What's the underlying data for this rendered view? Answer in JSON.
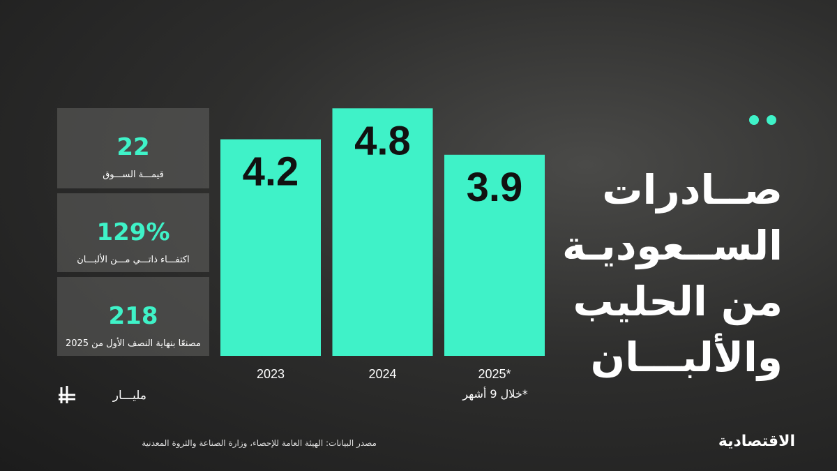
{
  "chart_data": {
    "type": "bar",
    "title_lines": [
      "صــادرات",
      "الســعوديـة",
      "من الحليب",
      "والألبـــان"
    ],
    "categories": [
      "2023",
      "2024",
      "2025*"
    ],
    "values": [
      4.2,
      4.8,
      3.9
    ],
    "color": "#3ff2c8",
    "note": "*خلال 9 أشهر",
    "unit": "مليـــار"
  },
  "stats": [
    {
      "value": 22,
      "label": "قيمـــة الســـوق"
    },
    {
      "value": 129,
      "value_label": "129%",
      "label": "اكتفـــاء ذاتـــي مـــن الألبـــان"
    },
    {
      "value": 218,
      "label": "مصنعًا بنهاية النصف الأول من 2025"
    }
  ],
  "source": "مصدر البيانات: الهيئة العامة للإحصاء، وزارة الصناعة والثروة المعدنية",
  "brand": "الاقتصادية"
}
